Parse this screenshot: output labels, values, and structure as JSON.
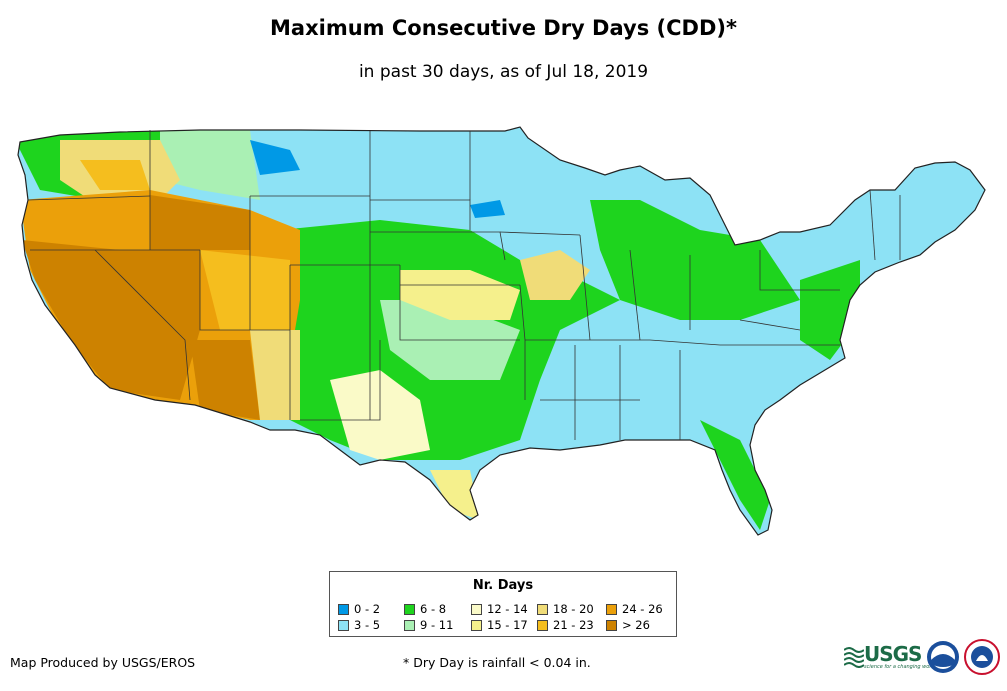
{
  "title": "Maximum Consecutive Dry Days (CDD)*",
  "subtitle": "in past 30 days, as of Jul 18, 2019",
  "legend": {
    "title": "Nr. Days",
    "items": [
      {
        "label": "0 - 2",
        "color": "#0099e6"
      },
      {
        "label": "3 - 5",
        "color": "#8de2f5"
      },
      {
        "label": "6 - 8",
        "color": "#1ed41e"
      },
      {
        "label": "9 - 11",
        "color": "#aaf0b4"
      },
      {
        "label": "12 - 14",
        "color": "#fafac8"
      },
      {
        "label": "15 - 17",
        "color": "#f5f08c"
      },
      {
        "label": "18 - 20",
        "color": "#f0dc78"
      },
      {
        "label": "21 - 23",
        "color": "#f5be1e"
      },
      {
        "label": "24 - 26",
        "color": "#eba00a"
      },
      {
        "label": "> 26",
        "color": "#cd8200"
      }
    ]
  },
  "credit": "Map Produced by USGS/EROS",
  "footnote": "* Dry Day is rainfall < 0.04 in.",
  "logos": {
    "usgs": "USGS",
    "usgs_tagline": "science for a changing world"
  }
}
